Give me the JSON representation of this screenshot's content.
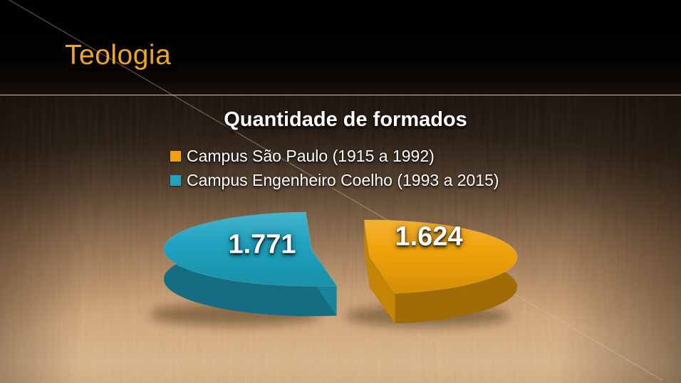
{
  "header": {
    "title": "Teologia",
    "accent_color": "#F2A51E"
  },
  "chart_data": {
    "type": "pie",
    "effect": "3d-exploded",
    "title": "Quantidade de formados",
    "legend_position": "top-left",
    "slices": [
      {
        "label": "Campus São Paulo (1915 a 1992)",
        "value": 1624,
        "display_value": "1.624",
        "color": "#F0A208"
      },
      {
        "label": "Campus Engenheiro Coelho (1993 a 2015)",
        "value": 1771,
        "display_value": "1.771",
        "color": "#1FA3C0"
      }
    ]
  }
}
